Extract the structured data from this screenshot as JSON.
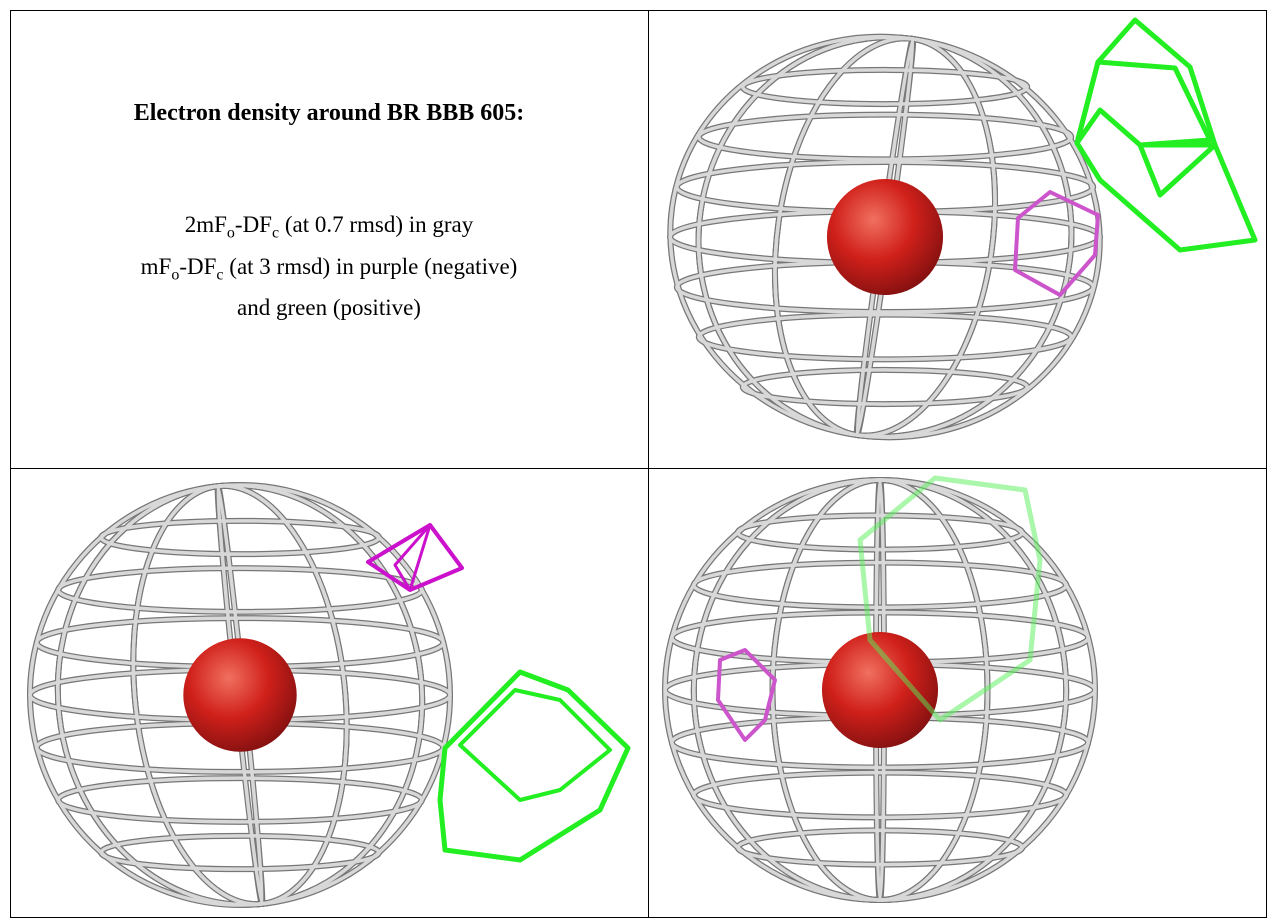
{
  "panel": {
    "title": "Electron density around BR BBB 605:",
    "legend_lines": [
      [
        {
          "text": "2mF"
        },
        {
          "sub": "o"
        },
        {
          "text": "-DF"
        },
        {
          "sub": "c"
        },
        {
          "text": " (at 0.7 rmsd) in gray"
        }
      ],
      [
        {
          "text": "mF"
        },
        {
          "sub": "o"
        },
        {
          "text": "-DF"
        },
        {
          "sub": "c"
        },
        {
          "text": " (at 3 rmsd) in purple (negative)"
        }
      ],
      [
        {
          "text": "and green (positive)"
        }
      ]
    ]
  }
}
